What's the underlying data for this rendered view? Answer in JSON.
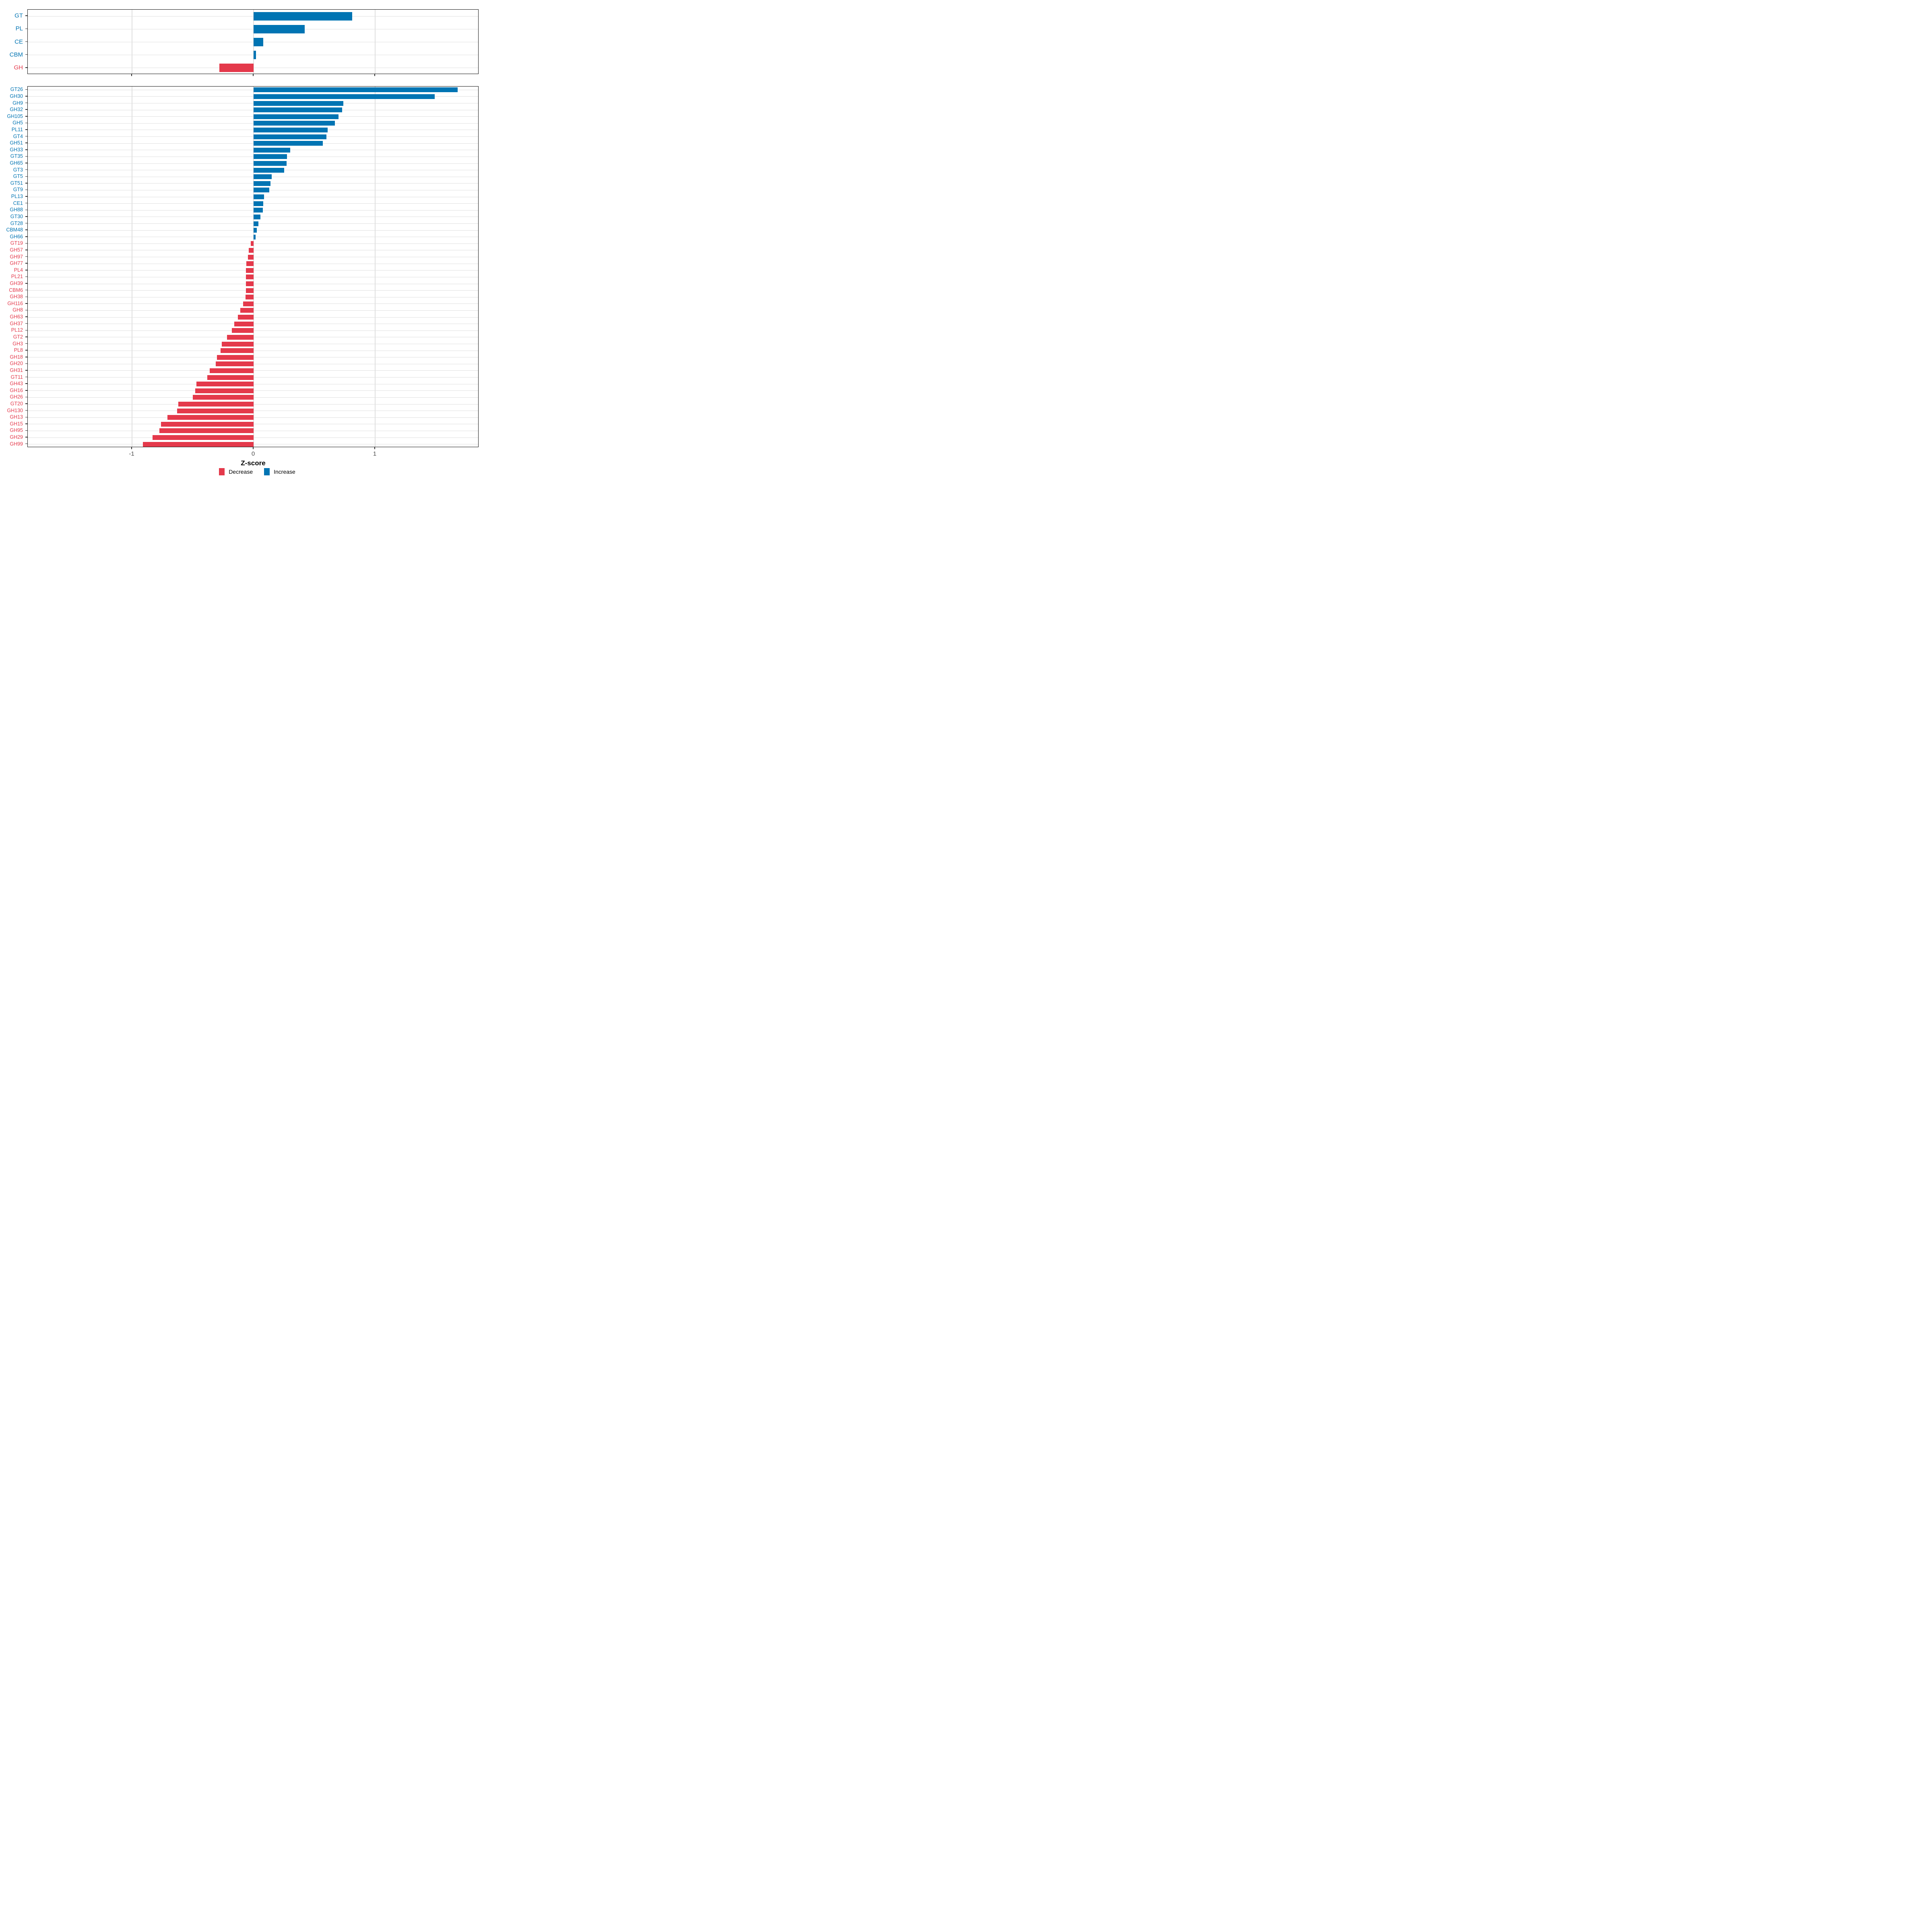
{
  "xlabel": "Z-score",
  "colors": {
    "increase": "#0074B3",
    "decrease": "#E4394B",
    "grid": "#DFDFDF",
    "axis_text": "#4D4D4D",
    "panel_border": "#141414"
  },
  "legend": [
    {
      "label": "Decrease",
      "color": "#E4394B"
    },
    {
      "label": "Increase",
      "color": "#0074B3"
    }
  ],
  "axis": {
    "ticks": [
      -1,
      0,
      1
    ],
    "xlim": [
      -1.855,
      1.855
    ]
  },
  "chart_data": [
    {
      "type": "bar",
      "orientation": "horizontal",
      "panel": "families",
      "title": "",
      "categories": [
        "GT",
        "PL",
        "CE",
        "CBM",
        "GH"
      ],
      "values": [
        0.81,
        0.42,
        0.08,
        0.02,
        -0.28
      ],
      "xlabel": "Z-score",
      "xlim": [
        -1.855,
        1.855
      ],
      "xticks": [
        -1,
        0,
        1
      ],
      "grid": "on",
      "legend_position": "bottom"
    },
    {
      "type": "bar",
      "orientation": "horizontal",
      "panel": "subfamilies",
      "title": "",
      "categories": [
        "GT26",
        "GH30",
        "GH9",
        "GH32",
        "GH105",
        "GH5",
        "PL11",
        "GT4",
        "GH51",
        "GH33",
        "GT35",
        "GH65",
        "GT3",
        "GT5",
        "GT51",
        "GT9",
        "PL13",
        "CE1",
        "GH88",
        "GT30",
        "GT28",
        "CBM48",
        "GH66",
        "GT19",
        "GH57",
        "GH97",
        "GH77",
        "PL4",
        "PL21",
        "GH39",
        "CBM6",
        "GH38",
        "GH116",
        "GH8",
        "GH63",
        "GH37",
        "PL12",
        "GT2",
        "GH3",
        "PL8",
        "GH18",
        "GH20",
        "GH31",
        "GT11",
        "GH43",
        "GH16",
        "GH26",
        "GT20",
        "GH130",
        "GH13",
        "GH15",
        "GH95",
        "GH29",
        "GH99"
      ],
      "values": [
        1.68,
        1.49,
        0.74,
        0.73,
        0.7,
        0.67,
        0.61,
        0.6,
        0.57,
        0.3,
        0.275,
        0.27,
        0.25,
        0.15,
        0.14,
        0.13,
        0.085,
        0.08,
        0.075,
        0.055,
        0.04,
        0.028,
        0.016,
        -0.023,
        -0.04,
        -0.048,
        -0.06,
        -0.062,
        -0.063,
        -0.063,
        -0.064,
        -0.065,
        -0.085,
        -0.11,
        -0.13,
        -0.16,
        -0.18,
        -0.22,
        -0.26,
        -0.27,
        -0.3,
        -0.31,
        -0.36,
        -0.38,
        -0.47,
        -0.48,
        -0.5,
        -0.62,
        -0.63,
        -0.71,
        -0.76,
        -0.775,
        -0.83,
        -0.91
      ],
      "xlabel": "Z-score",
      "xlim": [
        -1.855,
        1.855
      ],
      "xticks": [
        -1,
        0,
        1
      ],
      "grid": "on",
      "legend_position": "bottom"
    }
  ]
}
